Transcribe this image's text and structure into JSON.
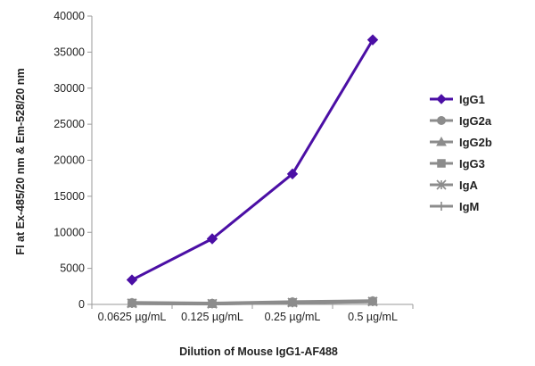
{
  "chart_data": {
    "type": "line",
    "categories": [
      "0.0625 µg/mL",
      "0.125 µg/mL",
      "0.25 µg/mL",
      "0.5 µg/mL"
    ],
    "series": [
      {
        "name": "IgG1",
        "values": [
          3400,
          9100,
          18100,
          36700
        ],
        "color": "#4b0fa5",
        "marker": "diamond"
      },
      {
        "name": "IgG2a",
        "values": [
          250,
          150,
          350,
          500
        ],
        "color": "#8c8c8c",
        "marker": "circle"
      },
      {
        "name": "IgG2b",
        "values": [
          200,
          120,
          300,
          450
        ],
        "color": "#8c8c8c",
        "marker": "triangle"
      },
      {
        "name": "IgG3",
        "values": [
          180,
          100,
          280,
          420
        ],
        "color": "#8c8c8c",
        "marker": "square"
      },
      {
        "name": "IgA",
        "values": [
          150,
          90,
          250,
          400
        ],
        "color": "#8c8c8c",
        "marker": "star"
      },
      {
        "name": "IgM",
        "values": [
          120,
          80,
          220,
          380
        ],
        "color": "#8c8c8c",
        "marker": "plus"
      }
    ],
    "xlabel": "Dilution of Mouse IgG1-AF488",
    "ylabel": "FI at Ex-485/20 nm & Em-528/20 nm",
    "ylim": [
      0,
      40000
    ],
    "yticks": [
      0,
      5000,
      10000,
      15000,
      20000,
      25000,
      30000,
      35000,
      40000
    ],
    "grid": false,
    "legend": "right"
  }
}
